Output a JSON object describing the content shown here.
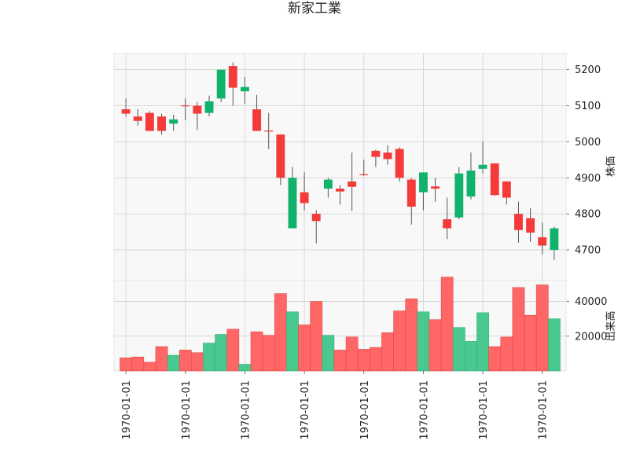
{
  "chart_data": {
    "type": "candlestick",
    "title": "新家工業",
    "price_axis_label": "株価",
    "volume_axis_label": "出来高",
    "price_ylim": [
      4615,
      5245
    ],
    "price_ticks": [
      4700,
      4800,
      4900,
      5000,
      5100,
      5200
    ],
    "volume_ylim": [
      0,
      52000
    ],
    "volume_ticks": [
      20000,
      40000
    ],
    "x_tick_labels": [
      "1970-01-01",
      "1970-01-01",
      "1970-01-01",
      "1970-01-01",
      "1970-01-01",
      "1970-01-01",
      "1970-01-01",
      "1970-01-01"
    ],
    "x_tick_indices": [
      0,
      5,
      10,
      15,
      20,
      25,
      30,
      35
    ],
    "up_color": "#11b26b",
    "down_color": "#f53a3a",
    "grid": true,
    "candles": [
      {
        "o": 5090,
        "h": 5120,
        "l": 5070,
        "c": 5078
      },
      {
        "o": 5070,
        "h": 5090,
        "l": 5045,
        "c": 5058
      },
      {
        "o": 5080,
        "h": 5085,
        "l": 5030,
        "c": 5030
      },
      {
        "o": 5070,
        "h": 5078,
        "l": 5020,
        "c": 5030
      },
      {
        "o": 5050,
        "h": 5075,
        "l": 5030,
        "c": 5062
      },
      {
        "o": 5101,
        "h": 5120,
        "l": 5060,
        "c": 5099
      },
      {
        "o": 5100,
        "h": 5110,
        "l": 5033,
        "c": 5078
      },
      {
        "o": 5080,
        "h": 5128,
        "l": 5070,
        "c": 5112
      },
      {
        "o": 5120,
        "h": 5200,
        "l": 5110,
        "c": 5200
      },
      {
        "o": 5210,
        "h": 5220,
        "l": 5100,
        "c": 5150
      },
      {
        "o": 5140,
        "h": 5180,
        "l": 5105,
        "c": 5152
      },
      {
        "o": 5090,
        "h": 5130,
        "l": 5030,
        "c": 5030
      },
      {
        "o": 5031,
        "h": 5080,
        "l": 4980,
        "c": 5029
      },
      {
        "o": 5020,
        "h": 5020,
        "l": 4880,
        "c": 4900
      },
      {
        "o": 4760,
        "h": 4930,
        "l": 4760,
        "c": 4900
      },
      {
        "o": 4860,
        "h": 4915,
        "l": 4810,
        "c": 4830
      },
      {
        "o": 4800,
        "h": 4810,
        "l": 4718,
        "c": 4780
      },
      {
        "o": 4870,
        "h": 4900,
        "l": 4845,
        "c": 4895
      },
      {
        "o": 4870,
        "h": 4880,
        "l": 4826,
        "c": 4862
      },
      {
        "o": 4890,
        "h": 4970,
        "l": 4808,
        "c": 4875
      },
      {
        "o": 4910,
        "h": 4950,
        "l": 4905,
        "c": 4908
      },
      {
        "o": 4975,
        "h": 4978,
        "l": 4930,
        "c": 4958
      },
      {
        "o": 4970,
        "h": 4990,
        "l": 4936,
        "c": 4952
      },
      {
        "o": 4980,
        "h": 4985,
        "l": 4890,
        "c": 4900
      },
      {
        "o": 4895,
        "h": 4900,
        "l": 4770,
        "c": 4820
      },
      {
        "o": 4860,
        "h": 4915,
        "l": 4810,
        "c": 4915
      },
      {
        "o": 4876,
        "h": 4900,
        "l": 4834,
        "c": 4870
      },
      {
        "o": 4785,
        "h": 4845,
        "l": 4730,
        "c": 4760
      },
      {
        "o": 4790,
        "h": 4930,
        "l": 4785,
        "c": 4912
      },
      {
        "o": 4848,
        "h": 4970,
        "l": 4840,
        "c": 4920
      },
      {
        "o": 4925,
        "h": 5000,
        "l": 4912,
        "c": 4936
      },
      {
        "o": 4940,
        "h": 4940,
        "l": 4850,
        "c": 4852
      },
      {
        "o": 4890,
        "h": 4890,
        "l": 4826,
        "c": 4845
      },
      {
        "o": 4800,
        "h": 4834,
        "l": 4720,
        "c": 4755
      },
      {
        "o": 4788,
        "h": 4815,
        "l": 4722,
        "c": 4748
      },
      {
        "o": 4735,
        "h": 4776,
        "l": 4688,
        "c": 4712
      },
      {
        "o": 4700,
        "h": 4765,
        "l": 4672,
        "c": 4760
      }
    ],
    "volumes": [
      7500,
      8000,
      5000,
      14000,
      9000,
      12000,
      10500,
      16000,
      21000,
      24000,
      3800,
      22500,
      20500,
      44500,
      34000,
      26500,
      40000,
      20500,
      12000,
      19500,
      12500,
      13500,
      22000,
      34500,
      41500,
      34000,
      29500,
      54000,
      25000,
      17000,
      33500,
      14000,
      19500,
      48000,
      32000,
      49500,
      30000
    ]
  }
}
